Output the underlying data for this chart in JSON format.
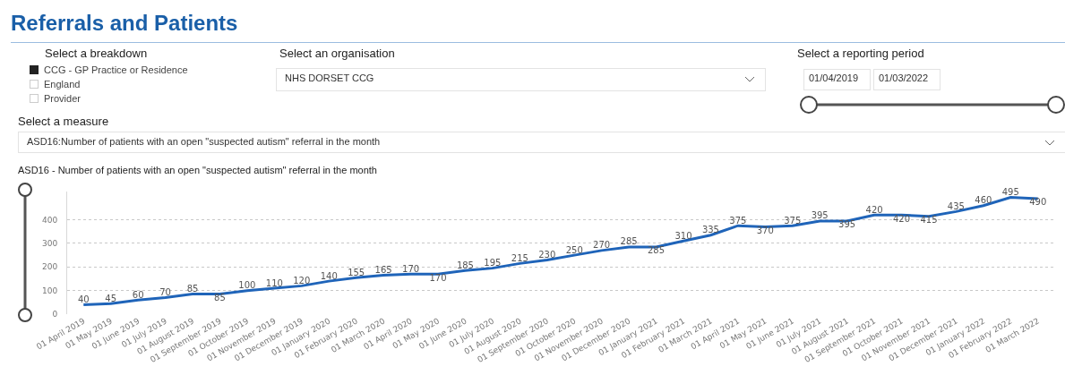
{
  "chart_data": {
    "type": "line",
    "title": "Referrals and Patients",
    "subtitle": "ASD16 - Number of patients with an open \"suspected autism\" referral in the month",
    "annotations": [
      "Select a breakdown",
      "CCG - GP Practice or Residence",
      "England",
      "Provider",
      "Select an organisation",
      "NHS DORSET CCG",
      "Select a reporting period",
      "01/04/2019",
      "01/03/2022",
      "Select a measure",
      "ASD16:Number of patients with an open \"suspected autism\" referral in the month"
    ],
    "categories": [
      "01 April 2019",
      "01 May 2019",
      "01 June 2019",
      "01 July 2019",
      "01 August 2019",
      "01 September 2019",
      "01 October 2019",
      "01 November 2019",
      "01 December 2019",
      "01 January 2020",
      "01 February 2020",
      "01 March 2020",
      "01 April 2020",
      "01 May 2020",
      "01 June 2020",
      "01 July 2020",
      "01 August 2020",
      "01 September 2020",
      "01 October 2020",
      "01 November 2020",
      "01 December 2020",
      "01 January 2021",
      "01 February 2021",
      "01 March 2021",
      "01 April 2021",
      "01 May 2021",
      "01 June 2021",
      "01 July 2021",
      "01 August 2021",
      "01 September 2021",
      "01 October 2021",
      "01 November 2021",
      "01 December 2021",
      "01 January 2022",
      "01 February 2022",
      "01 March 2022"
    ],
    "series": [
      {
        "color": "#1f64b9",
        "values": [
          40,
          45,
          60,
          70,
          85,
          85,
          100,
          110,
          120,
          140,
          155,
          165,
          170,
          170,
          185,
          195,
          215,
          230,
          250,
          270,
          285,
          285,
          310,
          335,
          375,
          370,
          375,
          395,
          395,
          420,
          420,
          415,
          435,
          460,
          495,
          490
        ]
      }
    ],
    "ylim": [
      0,
      520
    ],
    "yticks": [
      0,
      100,
      200,
      300,
      400
    ],
    "grid": "y",
    "legend": false,
    "marker": "none",
    "line_style": "solid",
    "data_labels": true
  }
}
